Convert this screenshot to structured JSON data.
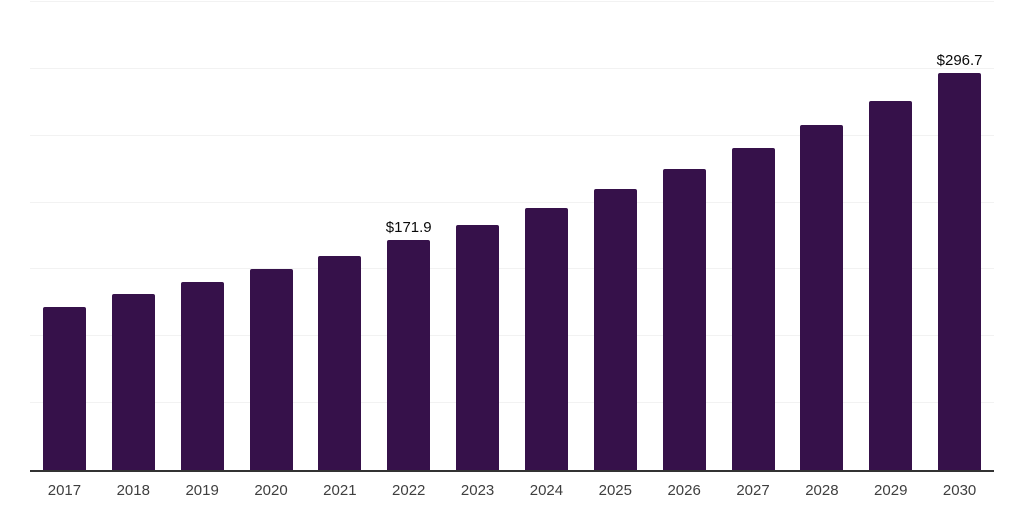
{
  "page": {
    "background_color": "#ffffff"
  },
  "chart_data": {
    "type": "bar",
    "title": "",
    "xlabel": "",
    "ylabel": "",
    "categories": [
      "2017",
      "2018",
      "2019",
      "2020",
      "2021",
      "2022",
      "2023",
      "2024",
      "2025",
      "2026",
      "2027",
      "2028",
      "2029",
      "2030"
    ],
    "values": [
      121.9,
      131.4,
      140.4,
      150.3,
      160.4,
      171.9,
      183.2,
      195.6,
      209.9,
      224.8,
      240.5,
      257.7,
      276.3,
      296.7
    ],
    "data_labels": [
      "",
      "",
      "",
      "",
      "",
      "$171.9",
      "",
      "",
      "",
      "",
      "",
      "",
      "",
      "$296.7"
    ],
    "ylim": [
      0,
      350
    ],
    "gridline_step": 50,
    "grid": "horizontal-only",
    "legend": "none",
    "y_axis_ticks_visible": false,
    "bar_color": "#36114A",
    "axis_line_color": "#333333",
    "gridline_color": "#f2f2f2",
    "tick_label_color": "#3f3f3f",
    "value_label_color": "#0a0a0a"
  }
}
